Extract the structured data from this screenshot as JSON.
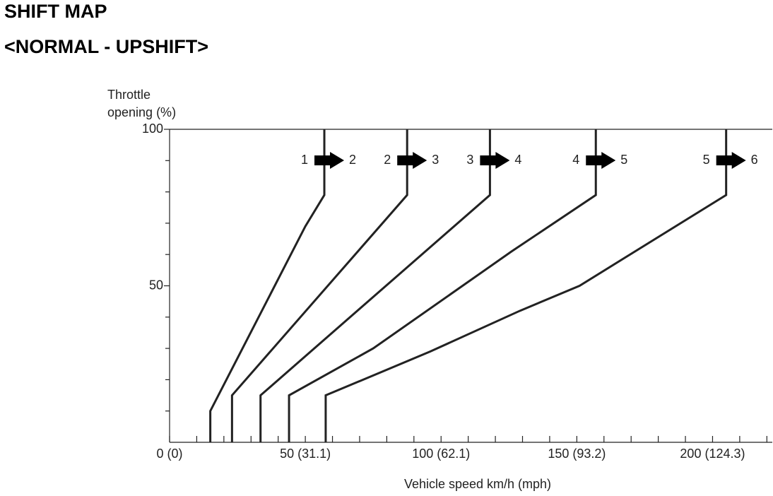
{
  "chart_data": {
    "type": "line",
    "title": "SHIFT MAP",
    "subtitle": "<NORMAL - UPSHIFT>",
    "ylabel": [
      "Throttle",
      "opening (%)"
    ],
    "xlabel": "Vehicle speed km/h (mph)",
    "xlim": [
      0,
      222
    ],
    "ylim": [
      0,
      100
    ],
    "xticks": [
      {
        "value": 0,
        "label": "0 (0)"
      },
      {
        "value": 50,
        "label": "50 (31.1)"
      },
      {
        "value": 100,
        "label": "100 (62.1)"
      },
      {
        "value": 150,
        "label": "150 (93.2)"
      },
      {
        "value": 200,
        "label": "200 (124.3)"
      }
    ],
    "x_minor_ticks": [
      10,
      20,
      30,
      40,
      60,
      70,
      80,
      90,
      110,
      120,
      130,
      140,
      160,
      170,
      180,
      190,
      210,
      220
    ],
    "yticks": [
      50,
      100
    ],
    "y_minor_ticks": [
      10,
      20,
      30,
      40,
      60,
      70,
      80,
      90
    ],
    "series": [
      {
        "from": "1",
        "to": "2",
        "color": "#222222",
        "x": [
          15,
          15,
          50,
          57,
          57
        ],
        "values": [
          0,
          10,
          69,
          79,
          100
        ]
      },
      {
        "from": "2",
        "to": "3",
        "color": "#222222",
        "x": [
          23,
          23,
          87.5,
          87.5
        ],
        "values": [
          0,
          15,
          79,
          100
        ]
      },
      {
        "from": "3",
        "to": "4",
        "color": "#222222",
        "x": [
          33.5,
          33.5,
          118,
          118
        ],
        "values": [
          0,
          15,
          79,
          100
        ]
      },
      {
        "from": "4",
        "to": "5",
        "color": "#222222",
        "x": [
          44,
          44,
          75,
          126,
          157,
          157
        ],
        "values": [
          0,
          15,
          30,
          61,
          79,
          100
        ]
      },
      {
        "from": "5",
        "to": "6",
        "color": "#222222",
        "x": [
          57.5,
          57.5,
          96,
          129,
          151,
          205,
          205
        ],
        "values": [
          0,
          15,
          29,
          42,
          50,
          79,
          100
        ]
      }
    ]
  }
}
